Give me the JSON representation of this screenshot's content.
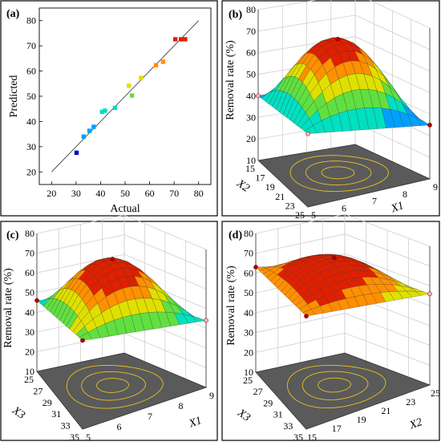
{
  "colors": {
    "gradient": [
      "#0000d0",
      "#00a0ff",
      "#00e0c0",
      "#60e040",
      "#e0e000",
      "#ff9000",
      "#e02000"
    ],
    "floor": "#5a5a5a",
    "contour": "#e8c020",
    "point_red": "#b00000",
    "point_pink": "#ffb0b0",
    "surface_mesh": "#303030"
  },
  "chart_data": [
    {
      "type": "scatter",
      "panel": "(a)",
      "xlabel": "Actual",
      "ylabel": "Predicted",
      "xlim": [
        15,
        85
      ],
      "ylim": [
        15,
        85
      ],
      "xticks": [
        "20",
        "30",
        "40",
        "50",
        "60",
        "70",
        "80"
      ],
      "yticks": [
        "20",
        "30",
        "40",
        "50",
        "60",
        "70",
        "80"
      ],
      "reference_line": [
        [
          20,
          20
        ],
        [
          80,
          80
        ]
      ],
      "points": [
        [
          30.2,
          27.6
        ],
        [
          33.1,
          34.0
        ],
        [
          35.5,
          36.3
        ],
        [
          37.2,
          37.9
        ],
        [
          40.6,
          43.8
        ],
        [
          41.8,
          44.3
        ],
        [
          45.9,
          45.4
        ],
        [
          51.6,
          54.2
        ],
        [
          52.8,
          50.3
        ],
        [
          56.5,
          57.3
        ],
        [
          62.6,
          62.3
        ],
        [
          65.5,
          63.7
        ],
        [
          70.5,
          72.6
        ],
        [
          72.8,
          72.6
        ],
        [
          74.5,
          72.6
        ]
      ]
    },
    {
      "type": "surface3d",
      "panel": "(b)",
      "zlabel": "Removal rate (%)",
      "xlabel": "X1",
      "ylabel": "X2",
      "zticks": [
        "10",
        "20",
        "30",
        "40",
        "50",
        "60",
        "70",
        "80"
      ],
      "xticks": [
        "5",
        "6",
        "7",
        "8",
        "9"
      ],
      "yticks": [
        "15",
        "17",
        "19",
        "21",
        "23",
        "25"
      ],
      "zlim": [
        10,
        80
      ],
      "peak": 72,
      "corners": [
        40,
        40,
        44,
        35
      ]
    },
    {
      "type": "surface3d",
      "panel": "(c)",
      "zlabel": "Removal rate (%)",
      "xlabel": "X1",
      "ylabel": "X3",
      "zticks": [
        "10",
        "20",
        "30",
        "40",
        "50",
        "60",
        "70",
        "80"
      ],
      "xticks": [
        "5",
        "6",
        "7",
        "8",
        "9"
      ],
      "yticks": [
        "25",
        "27",
        "29",
        "31",
        "33",
        "35"
      ],
      "zlim": [
        10,
        80
      ],
      "peak": 74,
      "corners": [
        46,
        40,
        55,
        44
      ]
    },
    {
      "type": "surface3d",
      "panel": "(d)",
      "zlabel": "Removal rate (%)",
      "xlabel": "X2",
      "ylabel": "X3",
      "zticks": [
        "10",
        "20",
        "30",
        "40",
        "50",
        "60",
        "70",
        "80"
      ],
      "xticks": [
        "15",
        "17",
        "19",
        "21",
        "23",
        "25"
      ],
      "yticks": [
        "25",
        "27",
        "29",
        "31",
        "33",
        "35"
      ],
      "zlim": [
        10,
        80
      ],
      "peak": 74,
      "corners": [
        63,
        55,
        67,
        56
      ]
    }
  ]
}
